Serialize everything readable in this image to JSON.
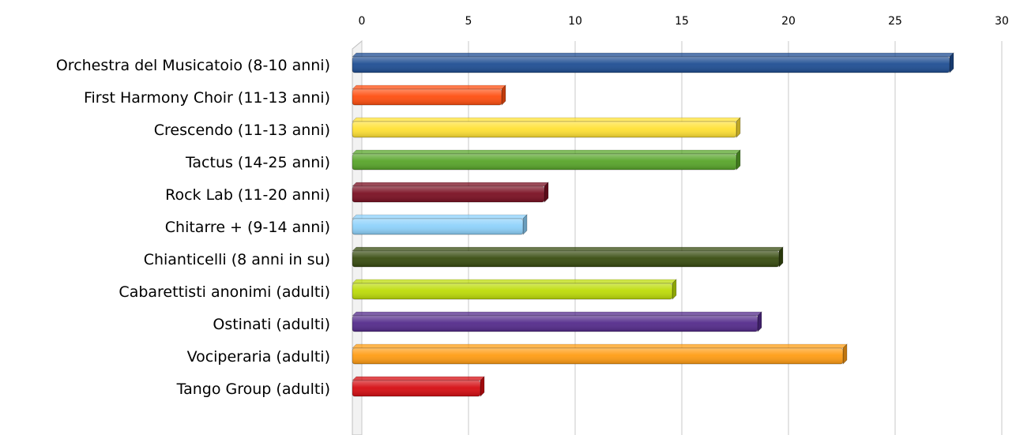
{
  "chart_data": {
    "type": "bar",
    "orientation": "horizontal",
    "style": "3d",
    "xlim": [
      0,
      30
    ],
    "x_ticks": [
      0,
      5,
      10,
      15,
      20,
      25,
      30
    ],
    "axis_position": "top",
    "grid": true,
    "legend": "none",
    "categories": [
      "Orchestra del Musicatoio (8-10 anni)",
      "First Harmony Choir (11-13 anni)",
      "Crescendo (11-13 anni)",
      "Tactus (14-25 anni)",
      "Rock Lab (11-20 anni)",
      "Chitarre + (9-14 anni)",
      "Chianticelli (8 anni in su)",
      "Cabarettisti anonimi (adulti)",
      "Ostinati (adulti)",
      "Vociperaria (adulti)",
      "Tango Group (adulti)"
    ],
    "values": [
      28,
      7,
      18,
      18,
      9,
      8,
      20,
      15,
      19,
      23,
      6
    ],
    "colors": [
      "#1f4e93",
      "#ff4f10",
      "#ffe135",
      "#58a52a",
      "#7a0f22",
      "#8ed2fb",
      "#384c10",
      "#bddc08",
      "#542b8b",
      "#ff9d14",
      "#d50d12"
    ]
  }
}
